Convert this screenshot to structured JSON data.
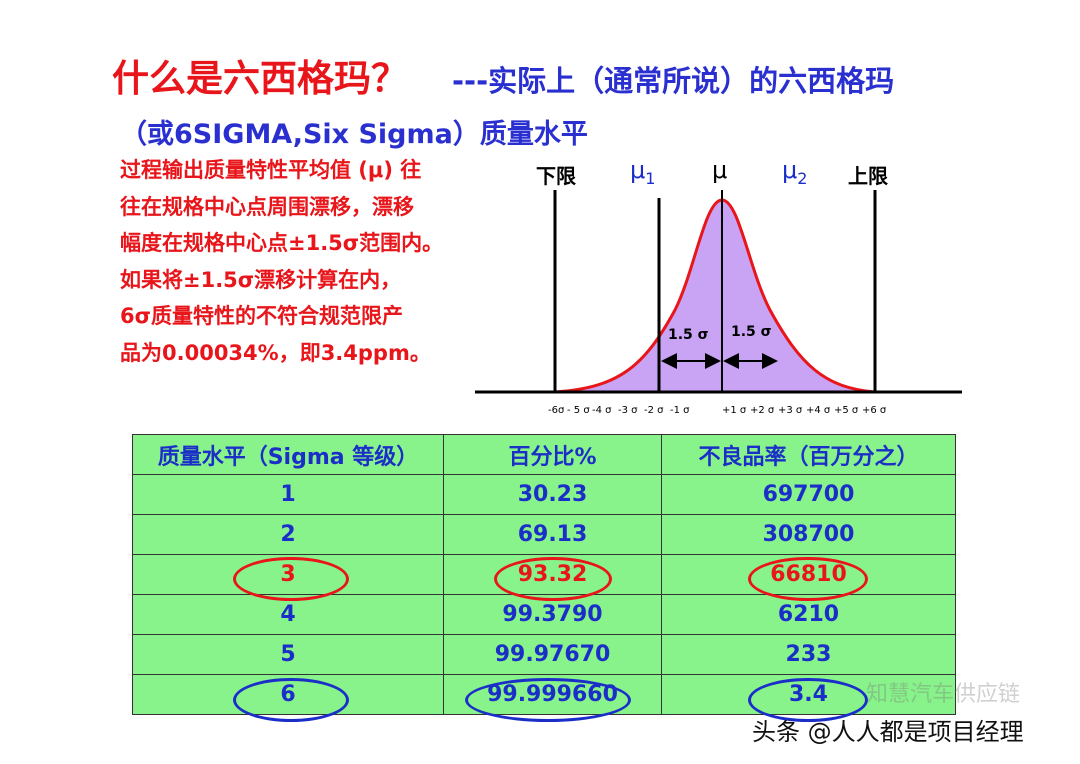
{
  "title": {
    "main": "什么是六西格玛？",
    "sub": "---实际上（通常所说）的六西格玛",
    "line2": "（或6SIGMA,Six Sigma）质量水平"
  },
  "description": [
    "过程输出质量特性平均值 (μ) 往",
    "往在规格中心点周围漂移，漂移",
    "幅度在规格中心点±1.5σ范围内。",
    "如果将±1.5σ漂移计算在内，",
    "6σ质量特性的不符合规范限产",
    "品为0.00034%，即3.4ppm。"
  ],
  "diagram": {
    "lower_limit": "下限",
    "upper_limit": "上限",
    "mu1": "μ",
    "mu1_sub": "1",
    "mu": "μ",
    "mu2": "μ",
    "mu2_sub": "2",
    "left_shift": "1.5 σ",
    "right_shift": "1.5 σ",
    "axis_ticks": [
      "-6σ",
      "- 5 σ",
      "-4 σ",
      "-3 σ",
      "-2 σ",
      "-1 σ",
      "+1 σ",
      "+2 σ",
      "+3 σ",
      "+4 σ",
      "+5 σ",
      "+6 σ"
    ],
    "fill_color": "#c9a4f4",
    "curve_color": "#e8161b"
  },
  "table": {
    "headers": [
      "质量水平（Sigma 等级）",
      "百分比%",
      "不良品率（百万分之）"
    ],
    "rows": [
      [
        "1",
        "30.23",
        "697700"
      ],
      [
        "2",
        "69.13",
        "308700"
      ],
      [
        "3",
        "93.32",
        "66810"
      ],
      [
        "4",
        "99.3790",
        "6210"
      ],
      [
        "5",
        "99.97670",
        "233"
      ],
      [
        "6",
        "99.999660",
        "3.4"
      ]
    ],
    "header_bg": "#88f38a",
    "highlight_red": "#e8161b",
    "highlight_blue": "#1b2fc8"
  },
  "watermark": "知慧汽车供应链",
  "credit": "头条 @人人都是项目经理"
}
